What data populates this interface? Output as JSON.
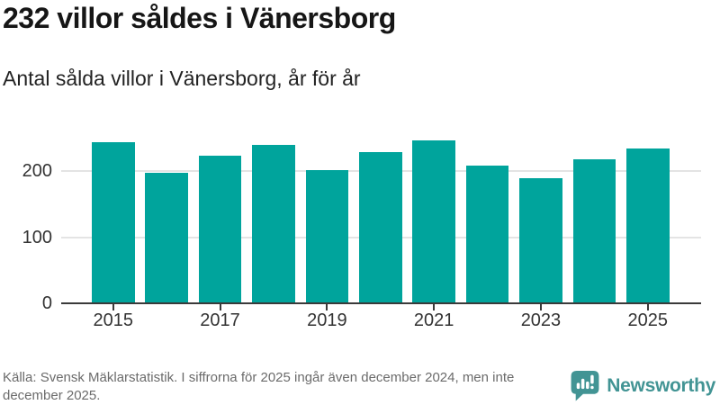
{
  "header": {
    "title": "232 villor såldes i Vänersborg",
    "subtitle": "Antal sålda villor i Vänersborg, år för år"
  },
  "chart_data": {
    "type": "bar",
    "categories": [
      "2015",
      "2016",
      "2017",
      "2018",
      "2019",
      "2020",
      "2021",
      "2022",
      "2023",
      "2024",
      "2025"
    ],
    "values": [
      242,
      196,
      222,
      238,
      200,
      227,
      245,
      207,
      188,
      217,
      232
    ],
    "title": "232 villor såldes i Vänersborg",
    "subtitle": "Antal sålda villor i Vänersborg, år för år",
    "xlabel": "",
    "ylabel": "",
    "y_ticks": [
      0,
      100,
      200
    ],
    "ylim": [
      0,
      260
    ],
    "x_tick_labels": [
      "2015",
      "2017",
      "2019",
      "2021",
      "2023",
      "2025"
    ],
    "grid": true,
    "legend": false,
    "bar_color": "#00a49c",
    "axis_color": "#3a3a3a",
    "gridline_color": "#e4e4e4",
    "tick_label_color": "#333333"
  },
  "footer": {
    "source_text": "Källa: Svensk Mäklarstatistik. I siffrorna för 2025 ingår även december 2024, men inte december 2025."
  },
  "branding": {
    "name": "Newsworthy",
    "color": "#429494",
    "icon": "newsworthy-speech-bubble-bar-chart-icon"
  }
}
